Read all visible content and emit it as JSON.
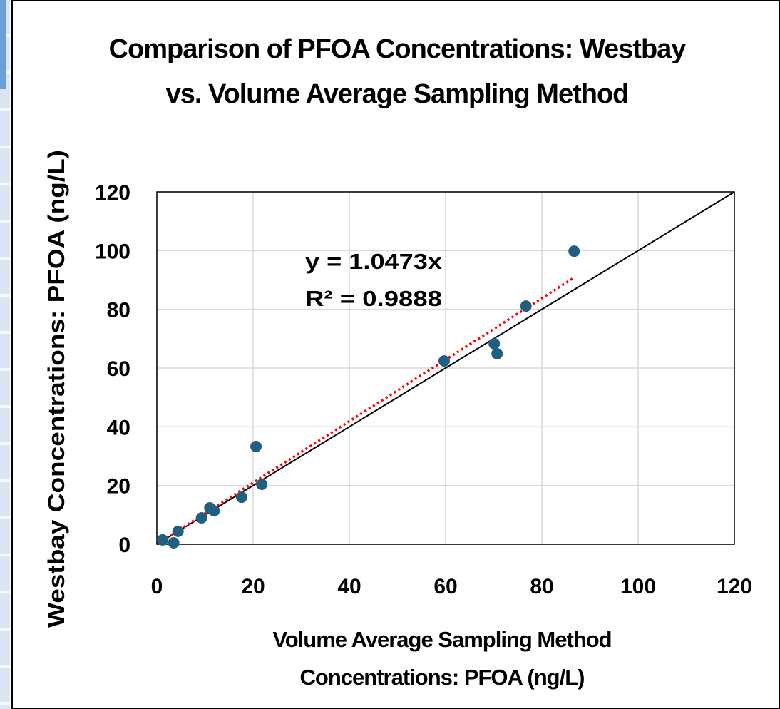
{
  "chart_data": {
    "type": "scatter",
    "title": "Comparison of PFOA Concentrations: Westbay vs. Volume Average Sampling Method",
    "x_label": "Volume Average Sampling Method Concentrations:  PFOA (ng/L)",
    "y_label": "Westbay Concentrations:  PFOA (ng/L)",
    "xlim": [
      0,
      120
    ],
    "xticks": [
      0,
      20,
      40,
      60,
      80,
      100,
      120
    ],
    "ylim": [
      0,
      120
    ],
    "yticks": [
      0,
      20,
      40,
      60,
      80,
      100,
      120
    ],
    "grid": true,
    "series": [
      {
        "color": "#215f82",
        "x": [
          1.2,
          3.5,
          4.4,
          9.3,
          11,
          11.9,
          17.6,
          20.6,
          21.8,
          59.7,
          70.1,
          70.7,
          76.7,
          86.7
        ],
        "values": [
          1.5,
          0.5,
          4.4,
          9,
          12.4,
          11.4,
          16,
          33.3,
          20.4,
          62.4,
          68.3,
          64.9,
          81.1,
          99.8
        ]
      }
    ],
    "trendline": {
      "slope": 1.0473,
      "color": "#ff0000",
      "equation": "y = 1.0473x",
      "r_squared": "R² = 0.9888"
    },
    "identity_line": {
      "color": "#000000"
    }
  }
}
